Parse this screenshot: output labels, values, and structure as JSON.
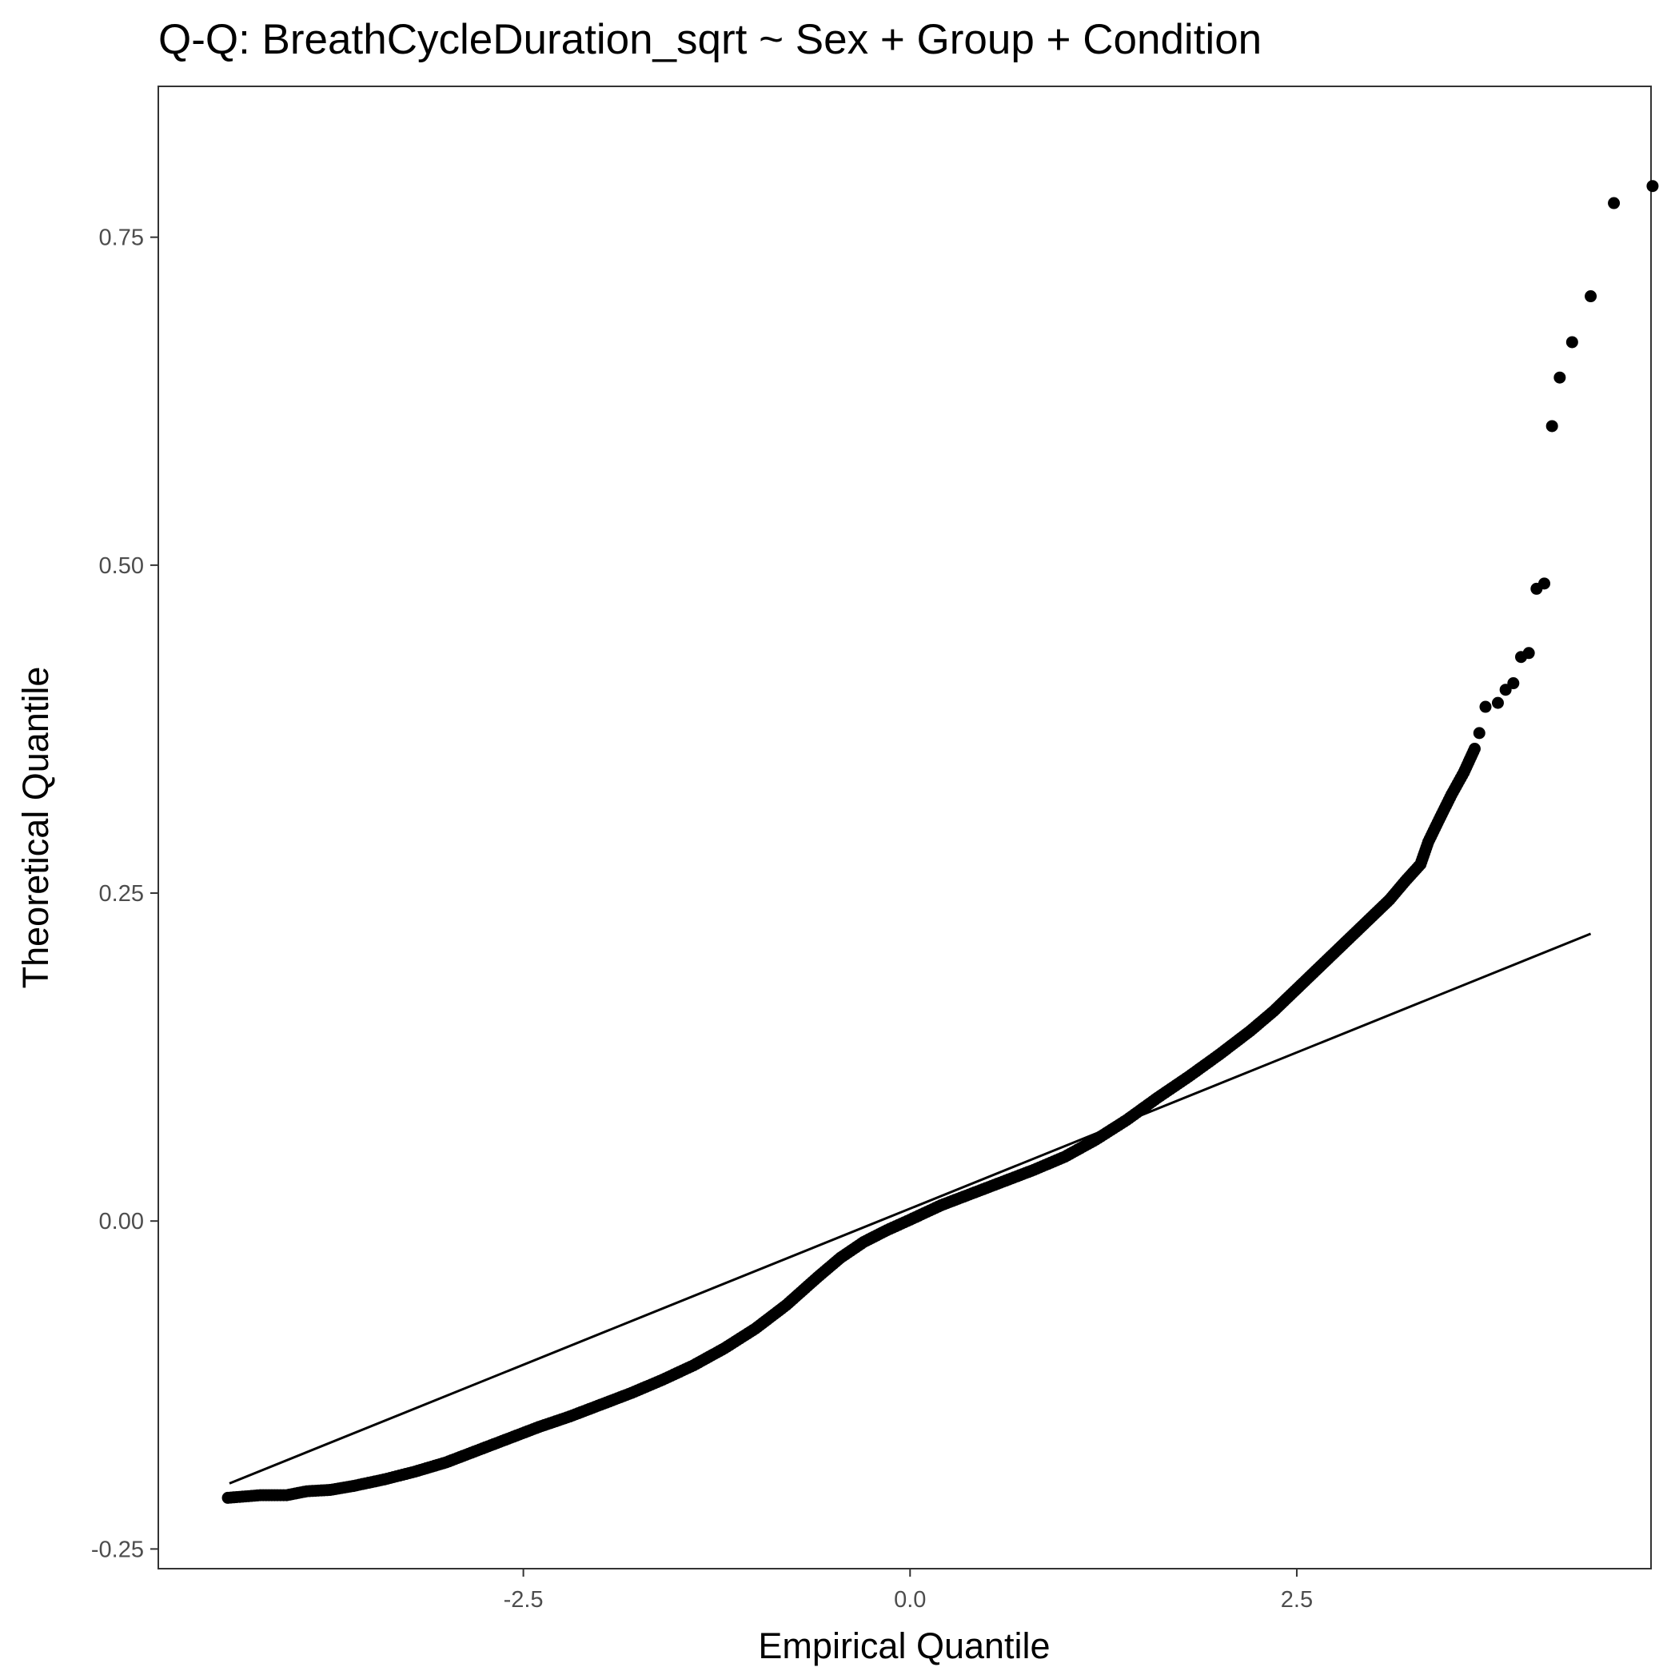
{
  "chart_data": {
    "type": "scatter",
    "title": "Q-Q: BreathCycleDuration_sqrt ~ Sex + Group + Condition",
    "xlabel": "Empirical Quantile",
    "ylabel": "Theoretical Quantile",
    "xlim": [
      -4.86,
      4.79
    ],
    "ylim": [
      -0.265,
      0.865
    ],
    "x_ticks": [
      -2.5,
      0.0,
      2.5
    ],
    "x_tick_labels": [
      "-2.5",
      "0.0",
      "2.5"
    ],
    "y_ticks": [
      -0.25,
      0.0,
      0.25,
      0.5,
      0.75
    ],
    "y_tick_labels": [
      "-0.25",
      "0.00",
      "0.25",
      "0.50",
      "0.75"
    ],
    "grid": false,
    "legend": "none",
    "point_color": "#000000",
    "reference_line": {
      "x": [
        -4.4,
        4.4
      ],
      "y": [
        -0.2,
        0.219
      ]
    },
    "series": [
      {
        "points": [
          [
            -4.41,
            -0.211
          ],
          [
            -4.2,
            -0.209
          ],
          [
            -4.09,
            -0.209
          ],
          [
            -4.03,
            -0.209
          ],
          [
            -3.9,
            -0.206
          ],
          [
            -3.75,
            -0.205
          ],
          [
            -3.6,
            -0.202
          ],
          [
            -3.4,
            -0.197
          ],
          [
            -3.2,
            -0.191
          ],
          [
            -3.0,
            -0.184
          ],
          [
            -2.8,
            -0.175
          ],
          [
            -2.6,
            -0.166
          ],
          [
            -2.4,
            -0.157
          ],
          [
            -2.2,
            -0.149
          ],
          [
            -2.0,
            -0.14
          ],
          [
            -1.8,
            -0.131
          ],
          [
            -1.6,
            -0.121
          ],
          [
            -1.4,
            -0.11
          ],
          [
            -1.2,
            -0.097
          ],
          [
            -1.0,
            -0.082
          ],
          [
            -0.8,
            -0.064
          ],
          [
            -0.6,
            -0.043
          ],
          [
            -0.45,
            -0.028
          ],
          [
            -0.3,
            -0.016
          ],
          [
            -0.15,
            -0.007
          ],
          [
            0.0,
            0.001
          ],
          [
            0.2,
            0.012
          ],
          [
            0.4,
            0.021
          ],
          [
            0.6,
            0.03
          ],
          [
            0.8,
            0.039
          ],
          [
            1.0,
            0.049
          ],
          [
            1.2,
            0.062
          ],
          [
            1.4,
            0.077
          ],
          [
            1.6,
            0.094
          ],
          [
            1.8,
            0.11
          ],
          [
            2.0,
            0.127
          ],
          [
            2.2,
            0.145
          ],
          [
            2.35,
            0.16
          ],
          [
            2.5,
            0.177
          ],
          [
            2.65,
            0.194
          ],
          [
            2.8,
            0.211
          ],
          [
            2.95,
            0.228
          ],
          [
            3.1,
            0.245
          ],
          [
            3.2,
            0.259
          ],
          [
            3.3,
            0.272
          ],
          [
            3.35,
            0.289
          ],
          [
            3.42,
            0.306
          ],
          [
            3.5,
            0.325
          ],
          [
            3.58,
            0.342
          ],
          [
            3.65,
            0.36
          ],
          [
            3.68,
            0.372
          ],
          [
            3.72,
            0.392
          ],
          [
            3.8,
            0.395
          ],
          [
            3.85,
            0.405
          ],
          [
            3.9,
            0.41
          ],
          [
            3.95,
            0.43
          ],
          [
            4.0,
            0.433
          ],
          [
            4.05,
            0.482
          ],
          [
            4.1,
            0.486
          ],
          [
            4.15,
            0.606
          ],
          [
            4.2,
            0.643
          ],
          [
            4.28,
            0.67
          ],
          [
            4.4,
            0.705
          ],
          [
            4.55,
            0.776
          ],
          [
            4.8,
            0.789
          ]
        ]
      }
    ]
  }
}
